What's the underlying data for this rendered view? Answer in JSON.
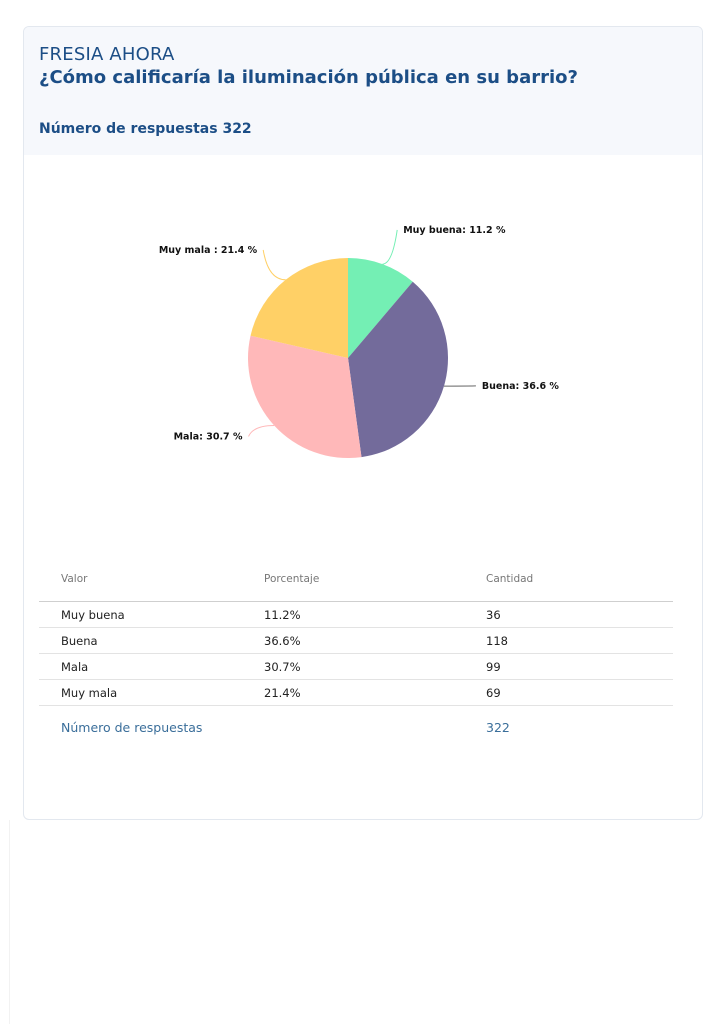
{
  "header": {
    "brand": "FRESIA AHORA",
    "question": "¿Cómo calificaría la iluminación pública en su barrio?",
    "responses_label": "Número de respuestas 322"
  },
  "chart_data": {
    "type": "pie",
    "categories": [
      "Muy buena",
      "Buena",
      "Mala",
      "Muy mala"
    ],
    "values": [
      11.2,
      36.6,
      30.7,
      21.4
    ],
    "labels": [
      "Muy buena: 11.2 %",
      "Buena: 36.6 %",
      "Mala: 30.7 %",
      "Muy mala : 21.4 %"
    ],
    "colors": [
      "#74efb4",
      "#736b9b",
      "#ffb8b9",
      "#ffd066"
    ],
    "start": "12 o'clock",
    "direction": "clockwise"
  },
  "table": {
    "headers": [
      "Valor",
      "Porcentaje",
      "Cantidad"
    ],
    "rows": [
      [
        "Muy buena",
        "11.2%",
        "36"
      ],
      [
        "Buena",
        "36.6%",
        "118"
      ],
      [
        "Mala",
        "30.7%",
        "99"
      ],
      [
        "Muy mala",
        "21.4%",
        "69"
      ]
    ],
    "total_label": "Número de respuestas",
    "total_value": "322"
  }
}
